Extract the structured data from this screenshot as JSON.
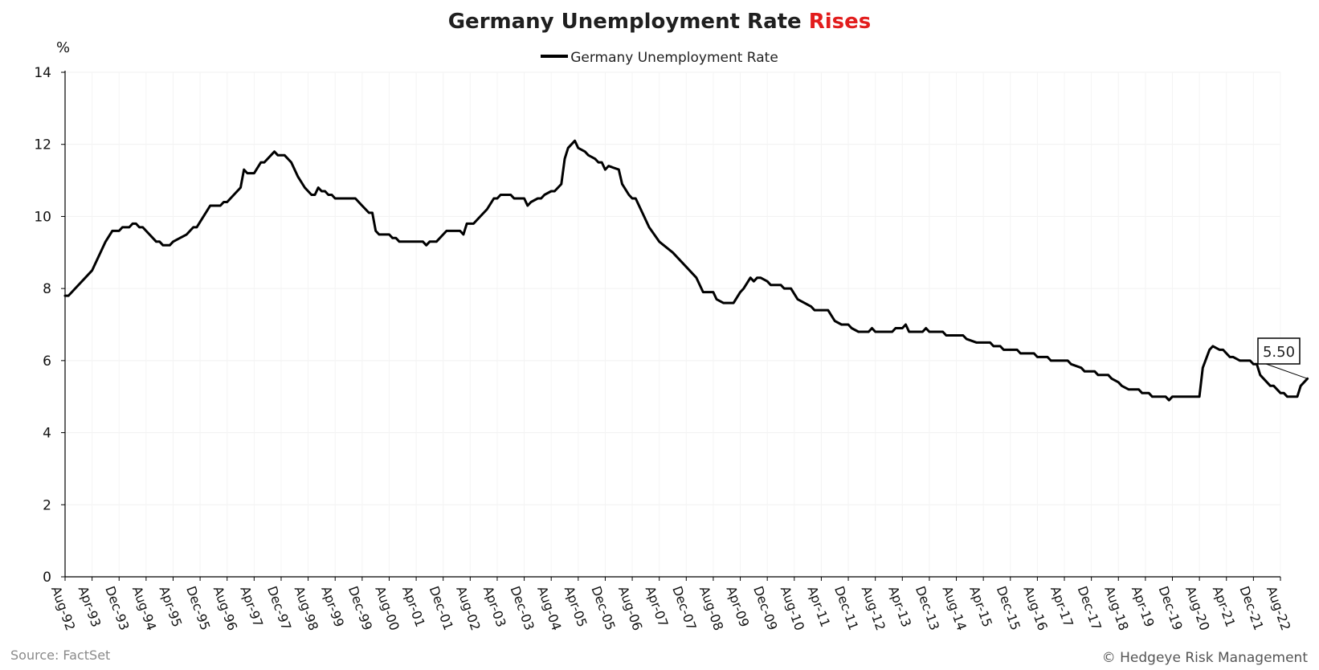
{
  "chart_data": {
    "type": "line",
    "title": "Germany Unemployment Rate",
    "title_highlight": "Rises",
    "title_highlight_color": "#e21d1d",
    "ylabel": "%",
    "xlabel": "",
    "ylim": [
      0,
      14
    ],
    "yticks": [
      0,
      2,
      4,
      6,
      8,
      10,
      12,
      14
    ],
    "x_range": [
      "1992-08",
      "2022-08"
    ],
    "x_tick_labels": [
      "Aug-92",
      "Apr-93",
      "Dec-93",
      "Aug-94",
      "Apr-95",
      "Dec-95",
      "Aug-96",
      "Apr-97",
      "Dec-97",
      "Aug-98",
      "Apr-99",
      "Dec-99",
      "Aug-00",
      "Apr-01",
      "Dec-01",
      "Aug-02",
      "Apr-03",
      "Dec-03",
      "Aug-04",
      "Apr-05",
      "Dec-05",
      "Aug-06",
      "Apr-07",
      "Dec-07",
      "Aug-08",
      "Apr-09",
      "Dec-09",
      "Aug-10",
      "Apr-11",
      "Dec-11",
      "Aug-12",
      "Apr-13",
      "Dec-13",
      "Aug-14",
      "Apr-15",
      "Dec-15",
      "Aug-16",
      "Apr-17",
      "Dec-17",
      "Aug-18",
      "Apr-19",
      "Dec-19",
      "Aug-20",
      "Apr-21",
      "Dec-21",
      "Aug-22"
    ],
    "grid": true,
    "legend_position": "top-center",
    "line_color": "#000000",
    "series": [
      {
        "name": "Germany Unemployment Rate",
        "points": [
          [
            "1992-08",
            7.8
          ],
          [
            "1992-09",
            7.8
          ],
          [
            "1992-11",
            8.0
          ],
          [
            "1993-02",
            8.3
          ],
          [
            "1993-04",
            8.5
          ],
          [
            "1993-05",
            8.7
          ],
          [
            "1993-07",
            9.1
          ],
          [
            "1993-08",
            9.3
          ],
          [
            "1993-10",
            9.6
          ],
          [
            "1993-11",
            9.6
          ],
          [
            "1993-12",
            9.6
          ],
          [
            "1994-01",
            9.7
          ],
          [
            "1994-03",
            9.7
          ],
          [
            "1994-04",
            9.8
          ],
          [
            "1994-05",
            9.8
          ],
          [
            "1994-06",
            9.7
          ],
          [
            "1994-07",
            9.7
          ],
          [
            "1994-08",
            9.6
          ],
          [
            "1994-10",
            9.4
          ],
          [
            "1994-11",
            9.3
          ],
          [
            "1994-12",
            9.3
          ],
          [
            "1995-01",
            9.2
          ],
          [
            "1995-03",
            9.2
          ],
          [
            "1995-04",
            9.3
          ],
          [
            "1995-06",
            9.4
          ],
          [
            "1995-08",
            9.5
          ],
          [
            "1995-10",
            9.7
          ],
          [
            "1995-11",
            9.7
          ],
          [
            "1996-01",
            10.0
          ],
          [
            "1996-03",
            10.3
          ],
          [
            "1996-06",
            10.3
          ],
          [
            "1996-07",
            10.4
          ],
          [
            "1996-08",
            10.4
          ],
          [
            "1996-10",
            10.6
          ],
          [
            "1996-12",
            10.8
          ],
          [
            "1997-01",
            11.3
          ],
          [
            "1997-02",
            11.2
          ],
          [
            "1997-04",
            11.2
          ],
          [
            "1997-06",
            11.5
          ],
          [
            "1997-07",
            11.5
          ],
          [
            "1997-09",
            11.7
          ],
          [
            "1997-10",
            11.8
          ],
          [
            "1997-11",
            11.7
          ],
          [
            "1998-01",
            11.7
          ],
          [
            "1998-03",
            11.5
          ],
          [
            "1998-05",
            11.1
          ],
          [
            "1998-07",
            10.8
          ],
          [
            "1998-09",
            10.6
          ],
          [
            "1998-10",
            10.6
          ],
          [
            "1998-11",
            10.8
          ],
          [
            "1998-12",
            10.7
          ],
          [
            "1999-01",
            10.7
          ],
          [
            "1999-02",
            10.6
          ],
          [
            "1999-03",
            10.6
          ],
          [
            "1999-04",
            10.5
          ],
          [
            "1999-10",
            10.5
          ],
          [
            "1999-12",
            10.3
          ],
          [
            "2000-02",
            10.1
          ],
          [
            "2000-03",
            10.1
          ],
          [
            "2000-04",
            9.6
          ],
          [
            "2000-05",
            9.5
          ],
          [
            "2000-08",
            9.5
          ],
          [
            "2000-09",
            9.4
          ],
          [
            "2000-10",
            9.4
          ],
          [
            "2000-11",
            9.3
          ],
          [
            "2001-06",
            9.3
          ],
          [
            "2001-07",
            9.2
          ],
          [
            "2001-08",
            9.3
          ],
          [
            "2001-10",
            9.3
          ],
          [
            "2002-01",
            9.6
          ],
          [
            "2002-05",
            9.6
          ],
          [
            "2002-06",
            9.5
          ],
          [
            "2002-07",
            9.8
          ],
          [
            "2002-09",
            9.8
          ],
          [
            "2002-11",
            10.0
          ],
          [
            "2003-01",
            10.2
          ],
          [
            "2003-03",
            10.5
          ],
          [
            "2003-04",
            10.5
          ],
          [
            "2003-05",
            10.6
          ],
          [
            "2003-08",
            10.6
          ],
          [
            "2003-09",
            10.5
          ],
          [
            "2003-12",
            10.5
          ],
          [
            "2004-01",
            10.3
          ],
          [
            "2004-02",
            10.4
          ],
          [
            "2004-04",
            10.5
          ],
          [
            "2004-05",
            10.5
          ],
          [
            "2004-06",
            10.6
          ],
          [
            "2004-08",
            10.7
          ],
          [
            "2004-09",
            10.7
          ],
          [
            "2004-11",
            10.9
          ],
          [
            "2004-12",
            11.6
          ],
          [
            "2005-01",
            11.9
          ],
          [
            "2005-03",
            12.1
          ],
          [
            "2005-04",
            11.9
          ],
          [
            "2005-06",
            11.8
          ],
          [
            "2005-07",
            11.7
          ],
          [
            "2005-09",
            11.6
          ],
          [
            "2005-10",
            11.5
          ],
          [
            "2005-11",
            11.5
          ],
          [
            "2005-12",
            11.3
          ],
          [
            "2006-01",
            11.4
          ],
          [
            "2006-04",
            11.3
          ],
          [
            "2006-05",
            10.9
          ],
          [
            "2006-07",
            10.6
          ],
          [
            "2006-08",
            10.5
          ],
          [
            "2006-09",
            10.5
          ],
          [
            "2006-11",
            10.1
          ],
          [
            "2007-01",
            9.7
          ],
          [
            "2007-04",
            9.3
          ],
          [
            "2007-08",
            9.0
          ],
          [
            "2007-12",
            8.6
          ],
          [
            "2008-03",
            8.3
          ],
          [
            "2008-05",
            7.9
          ],
          [
            "2008-06",
            7.9
          ],
          [
            "2008-08",
            7.9
          ],
          [
            "2008-09",
            7.7
          ],
          [
            "2008-11",
            7.6
          ],
          [
            "2009-02",
            7.6
          ],
          [
            "2009-04",
            7.9
          ],
          [
            "2009-05",
            8.0
          ],
          [
            "2009-07",
            8.3
          ],
          [
            "2009-08",
            8.2
          ],
          [
            "2009-09",
            8.3
          ],
          [
            "2009-10",
            8.3
          ],
          [
            "2009-12",
            8.2
          ],
          [
            "2010-01",
            8.1
          ],
          [
            "2010-04",
            8.1
          ],
          [
            "2010-05",
            8.0
          ],
          [
            "2010-07",
            8.0
          ],
          [
            "2010-09",
            7.7
          ],
          [
            "2010-11",
            7.6
          ],
          [
            "2011-01",
            7.5
          ],
          [
            "2011-02",
            7.4
          ],
          [
            "2011-06",
            7.4
          ],
          [
            "2011-08",
            7.1
          ],
          [
            "2011-10",
            7.0
          ],
          [
            "2011-12",
            7.0
          ],
          [
            "2012-01",
            6.9
          ],
          [
            "2012-03",
            6.8
          ],
          [
            "2012-06",
            6.8
          ],
          [
            "2012-07",
            6.9
          ],
          [
            "2012-08",
            6.8
          ],
          [
            "2013-01",
            6.8
          ],
          [
            "2013-02",
            6.9
          ],
          [
            "2013-04",
            6.9
          ],
          [
            "2013-05",
            7.0
          ],
          [
            "2013-06",
            6.8
          ],
          [
            "2013-10",
            6.8
          ],
          [
            "2013-11",
            6.9
          ],
          [
            "2013-12",
            6.8
          ],
          [
            "2014-04",
            6.8
          ],
          [
            "2014-05",
            6.7
          ],
          [
            "2014-10",
            6.7
          ],
          [
            "2014-11",
            6.6
          ],
          [
            "2015-02",
            6.5
          ],
          [
            "2015-06",
            6.5
          ],
          [
            "2015-07",
            6.4
          ],
          [
            "2015-09",
            6.4
          ],
          [
            "2015-10",
            6.3
          ],
          [
            "2016-02",
            6.3
          ],
          [
            "2016-03",
            6.2
          ],
          [
            "2016-07",
            6.2
          ],
          [
            "2016-08",
            6.1
          ],
          [
            "2016-11",
            6.1
          ],
          [
            "2016-12",
            6.0
          ],
          [
            "2017-05",
            6.0
          ],
          [
            "2017-06",
            5.9
          ],
          [
            "2017-09",
            5.8
          ],
          [
            "2017-10",
            5.7
          ],
          [
            "2018-01",
            5.7
          ],
          [
            "2018-02",
            5.6
          ],
          [
            "2018-05",
            5.6
          ],
          [
            "2018-06",
            5.5
          ],
          [
            "2018-08",
            5.4
          ],
          [
            "2018-09",
            5.3
          ],
          [
            "2018-11",
            5.2
          ],
          [
            "2019-02",
            5.2
          ],
          [
            "2019-03",
            5.1
          ],
          [
            "2019-05",
            5.1
          ],
          [
            "2019-06",
            5.0
          ],
          [
            "2019-08",
            5.0
          ],
          [
            "2019-10",
            5.0
          ],
          [
            "2019-11",
            4.9
          ],
          [
            "2019-12",
            5.0
          ],
          [
            "2020-01",
            5.0
          ],
          [
            "2020-07",
            5.0
          ],
          [
            "2020-08",
            5.0
          ],
          [
            "2020-09",
            5.8
          ],
          [
            "2020-11",
            6.3
          ],
          [
            "2020-12",
            6.4
          ],
          [
            "2021-02",
            6.3
          ],
          [
            "2021-03",
            6.3
          ],
          [
            "2021-05",
            6.1
          ],
          [
            "2021-06",
            6.1
          ],
          [
            "2021-08",
            6.0
          ],
          [
            "2021-11",
            6.0
          ],
          [
            "2021-12",
            5.9
          ],
          [
            "2022-01",
            5.9
          ],
          [
            "2022-02",
            5.6
          ],
          [
            "2022-04",
            5.4
          ],
          [
            "2022-05",
            5.3
          ],
          [
            "2022-06",
            5.3
          ],
          [
            "2022-08",
            5.1
          ],
          [
            "2022-09",
            5.1
          ],
          [
            "2022-10",
            5.0
          ],
          [
            "2023-01",
            5.0
          ],
          [
            "2023-02",
            5.3
          ],
          [
            "2023-04",
            5.5
          ]
        ]
      }
    ],
    "last_value_label": "5.50"
  },
  "footer": {
    "source": "Source: FactSet",
    "copyright": "© Hedgeye Risk Management"
  }
}
